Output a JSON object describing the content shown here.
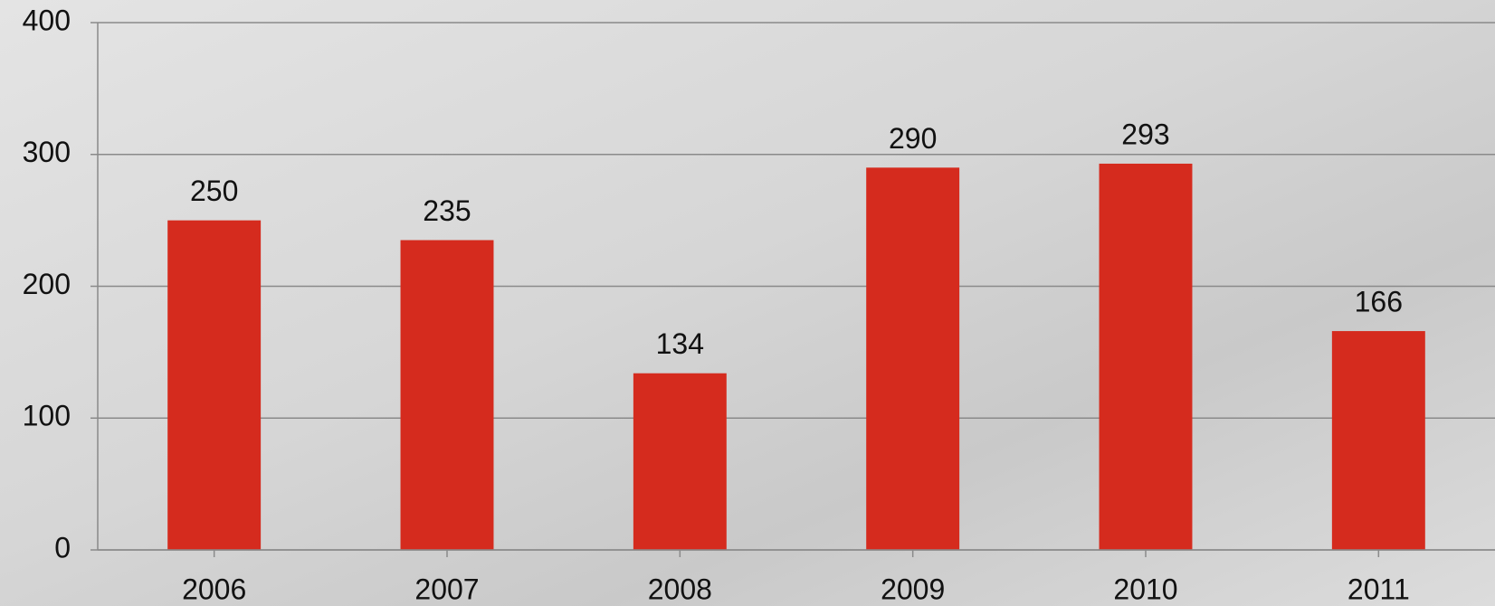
{
  "chart_data": {
    "type": "bar",
    "categories": [
      "2006",
      "2007",
      "2008",
      "2009",
      "2010",
      "2011"
    ],
    "values": [
      250,
      235,
      134,
      290,
      293,
      166
    ],
    "color": "#d52b1e",
    "ylim": [
      0,
      400
    ],
    "yticks": [
      0,
      100,
      200,
      300,
      400
    ],
    "grid": true
  }
}
